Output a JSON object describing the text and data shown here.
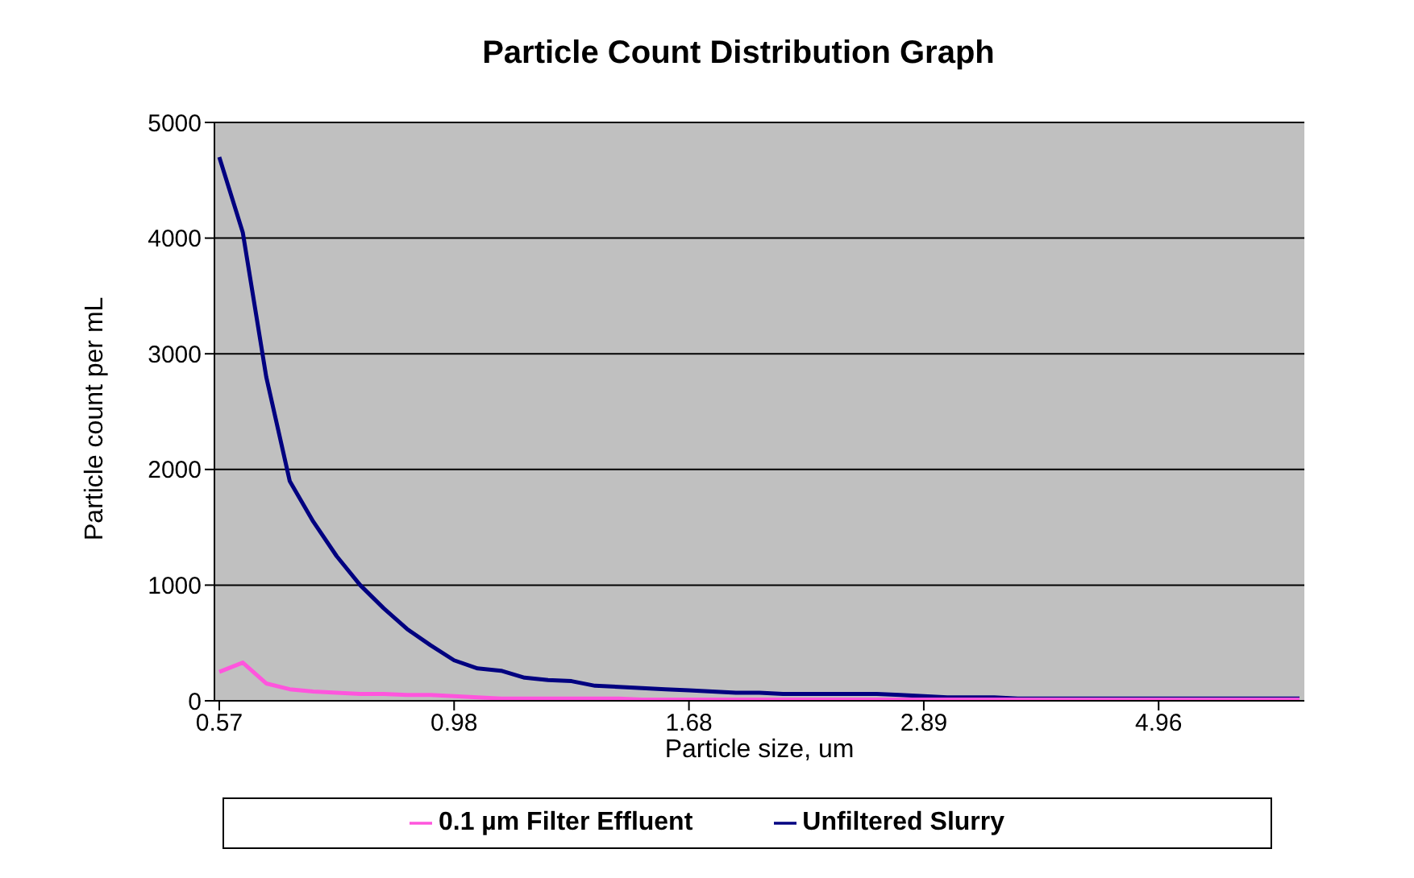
{
  "chart_data": {
    "type": "line",
    "title": "Particle Count Distribution Graph",
    "xlabel": "Particle size, um",
    "ylabel": "Particle count per mL",
    "categories": [
      "0.57",
      null,
      null,
      null,
      null,
      null,
      null,
      null,
      null,
      null,
      "0.98",
      null,
      null,
      null,
      null,
      null,
      null,
      null,
      null,
      null,
      "1.68",
      null,
      null,
      null,
      null,
      null,
      null,
      null,
      null,
      null,
      "2.89",
      null,
      null,
      null,
      null,
      null,
      null,
      null,
      null,
      null,
      "4.96",
      null,
      null,
      null,
      null,
      null,
      null
    ],
    "series": [
      {
        "name": "Unfiltered Slurry",
        "color": "#000080",
        "values": [
          4700,
          4050,
          2800,
          1900,
          1550,
          1250,
          1000,
          800,
          620,
          480,
          350,
          280,
          260,
          200,
          180,
          170,
          130,
          120,
          110,
          100,
          90,
          80,
          70,
          70,
          60,
          60,
          60,
          60,
          60,
          50,
          40,
          30,
          30,
          30,
          20,
          20,
          20,
          20,
          20,
          20,
          20,
          20,
          20,
          20,
          20,
          20,
          20
        ]
      },
      {
        "name": "0.1 µm Filter Effluent",
        "color": "#ff55dd",
        "values": [
          250,
          330,
          150,
          100,
          80,
          70,
          60,
          60,
          50,
          50,
          40,
          30,
          20,
          20,
          20,
          20,
          20,
          20,
          10,
          10,
          10,
          10,
          10,
          10,
          10,
          10,
          10,
          10,
          10,
          10,
          10,
          10,
          10,
          10,
          10,
          10,
          10,
          10,
          10,
          10,
          10,
          10,
          10,
          10,
          10,
          10,
          10
        ]
      }
    ],
    "ylim": [
      0,
      5000
    ],
    "yticks": [
      0,
      1000,
      2000,
      3000,
      4000,
      5000
    ],
    "grid": "y",
    "legend": "bottom",
    "marker": "none",
    "line_style": "solid"
  }
}
